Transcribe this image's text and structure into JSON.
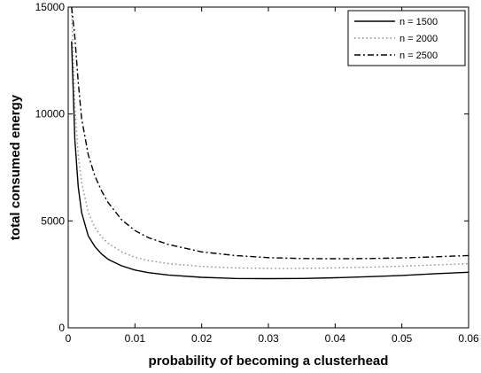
{
  "chart_data": {
    "type": "line",
    "title": "",
    "xlabel": "probability of becoming a clusterhead",
    "ylabel": "total consumed energy",
    "xlim": [
      0,
      0.06
    ],
    "ylim": [
      0,
      15000
    ],
    "xticks": [
      0,
      0.01,
      0.02,
      0.03,
      0.04,
      0.05,
      0.06
    ],
    "xtick_labels": [
      "0",
      "0.01",
      "0.02",
      "0.03",
      "0.04",
      "0.05",
      "0.06"
    ],
    "yticks": [
      0,
      5000,
      10000,
      15000
    ],
    "ytick_labels": [
      "0",
      "5000",
      "10000",
      "15000"
    ],
    "grid": false,
    "legend_position": "top-right",
    "series": [
      {
        "name": "n = 1500",
        "line_style": "solid",
        "color": "#000000",
        "x": [
          0.0005,
          0.001,
          0.0015,
          0.002,
          0.003,
          0.004,
          0.005,
          0.006,
          0.008,
          0.01,
          0.012,
          0.015,
          0.02,
          0.025,
          0.03,
          0.035,
          0.04,
          0.045,
          0.05,
          0.055,
          0.06
        ],
        "y": [
          13400,
          8800,
          6600,
          5400,
          4300,
          3800,
          3450,
          3200,
          2900,
          2700,
          2580,
          2470,
          2360,
          2310,
          2300,
          2310,
          2340,
          2390,
          2450,
          2530,
          2600
        ]
      },
      {
        "name": "n = 2000",
        "line_style": "dotted",
        "color": "#8a8a8a",
        "x": [
          0.0005,
          0.001,
          0.0015,
          0.002,
          0.003,
          0.004,
          0.005,
          0.006,
          0.008,
          0.01,
          0.012,
          0.015,
          0.02,
          0.025,
          0.03,
          0.035,
          0.04,
          0.045,
          0.05,
          0.055,
          0.06
        ],
        "y": [
          15000,
          10400,
          8100,
          6800,
          5400,
          4700,
          4250,
          3950,
          3550,
          3300,
          3150,
          3000,
          2870,
          2800,
          2780,
          2780,
          2800,
          2840,
          2880,
          2940,
          3000
        ]
      },
      {
        "name": "n = 2500",
        "line_style": "dashdot",
        "color": "#000000",
        "x": [
          0.0005,
          0.001,
          0.0015,
          0.002,
          0.003,
          0.004,
          0.005,
          0.006,
          0.008,
          0.01,
          0.012,
          0.015,
          0.02,
          0.025,
          0.03,
          0.035,
          0.04,
          0.045,
          0.05,
          0.055,
          0.06
        ],
        "y": [
          15000,
          13600,
          11500,
          9800,
          8100,
          7100,
          6400,
          5850,
          5050,
          4550,
          4220,
          3900,
          3550,
          3380,
          3280,
          3240,
          3230,
          3240,
          3270,
          3320,
          3380
        ]
      }
    ]
  }
}
